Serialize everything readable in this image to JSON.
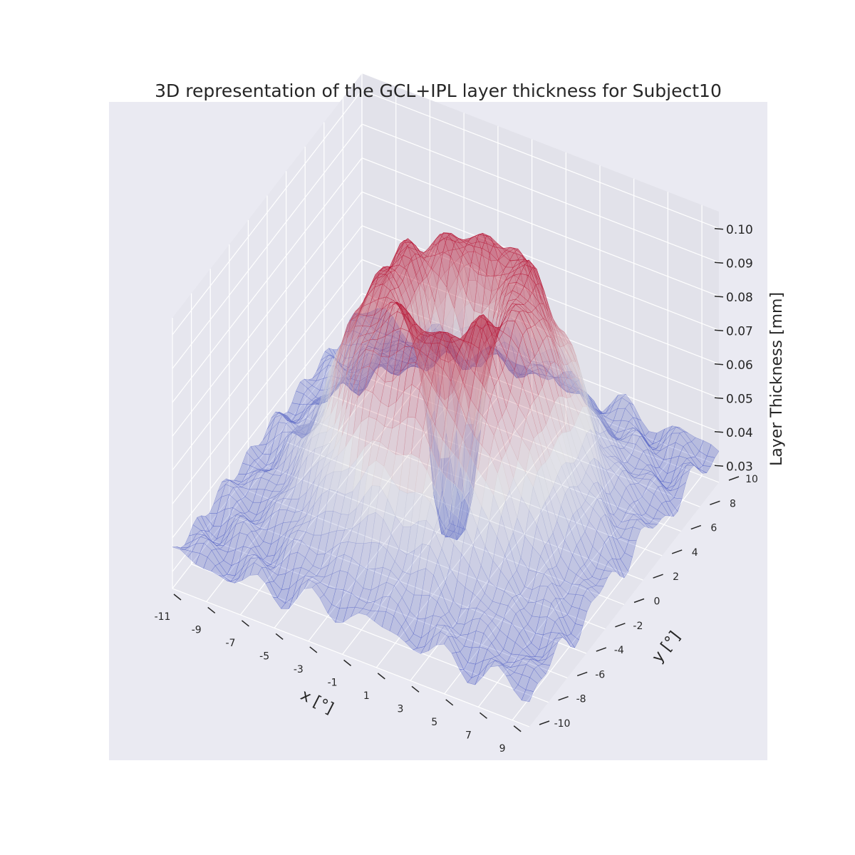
{
  "chart_data": {
    "type": "surface",
    "title": "3D representation of the GCL+IPL layer thickness for Subject10",
    "xlabel": "x [°]",
    "ylabel": "y [°]",
    "zlabel": "Layer Thickness [mm]",
    "x_ticks": [
      "-11",
      "-9",
      "-7",
      "-5",
      "-3",
      "-1",
      "1",
      "3",
      "5",
      "7",
      "9"
    ],
    "y_ticks": [
      "-10",
      "-8",
      "-6",
      "-4",
      "-2",
      "0",
      "2",
      "4",
      "6",
      "8",
      "10"
    ],
    "z_ticks": [
      "0.03",
      "0.04",
      "0.05",
      "0.06",
      "0.07",
      "0.08",
      "0.09",
      "0.10"
    ],
    "xlim": [
      -11,
      10
    ],
    "ylim": [
      -10,
      10
    ],
    "zlim": [
      0.025,
      0.105
    ],
    "grid": true,
    "colormap": "coolwarm",
    "surface_model": {
      "description_units": "mm",
      "ring_radius_deg": 3.5,
      "ring_peak_mm": 0.1,
      "foveal_pit_mm": 0.03,
      "periphery_mm": 0.035
    }
  },
  "colors": {
    "pane_background": "#eaeaf2",
    "grid": "#ffffff",
    "low": "#3b4cc0",
    "mid": "#dddddd",
    "high": "#b40426"
  }
}
